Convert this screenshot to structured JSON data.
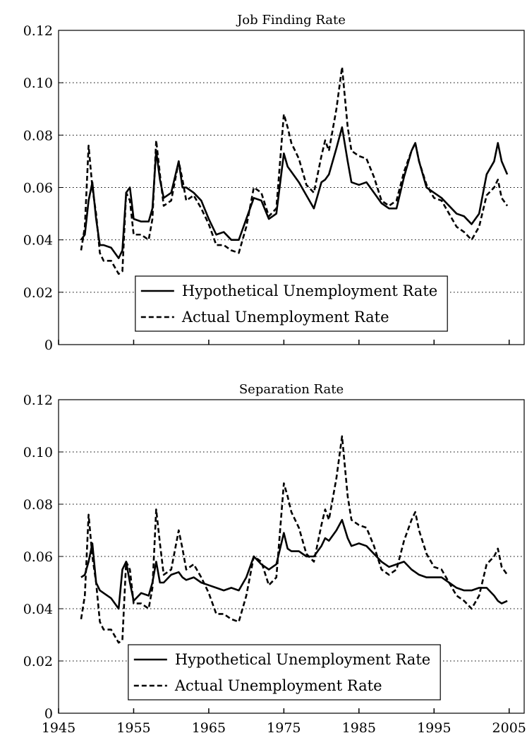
{
  "chart_data": [
    {
      "type": "line",
      "title": "Job Finding Rate",
      "x": [
        1948,
        1948.5,
        1949,
        1949.5,
        1950,
        1950.5,
        1951,
        1952,
        1953,
        1953.5,
        1954,
        1954.5,
        1955,
        1956,
        1957,
        1957.5,
        1958,
        1958.5,
        1959,
        1960,
        1961,
        1961.5,
        1962,
        1963,
        1964,
        1965,
        1966,
        1967,
        1968,
        1969,
        1970,
        1971,
        1972,
        1973,
        1974,
        1975,
        1975.5,
        1976,
        1977,
        1978,
        1979,
        1980,
        1980.5,
        1981,
        1982,
        1982.75,
        1983.5,
        1984,
        1985,
        1986,
        1987,
        1988,
        1989,
        1990,
        1991,
        1992,
        1992.5,
        1993,
        1994,
        1995,
        1996,
        1997,
        1998,
        1999,
        2000,
        2001,
        2002,
        2003,
        2003.5,
        2004,
        2004.75
      ],
      "series": [
        {
          "name": "Hypothetical Unemployment Rate",
          "color": "#000000",
          "style": "solid",
          "values": [
            0.04,
            0.042,
            0.055,
            0.062,
            0.048,
            0.038,
            0.038,
            0.037,
            0.033,
            0.036,
            0.058,
            0.06,
            0.048,
            0.047,
            0.047,
            0.052,
            0.074,
            0.063,
            0.056,
            0.058,
            0.07,
            0.06,
            0.06,
            0.058,
            0.055,
            0.048,
            0.042,
            0.043,
            0.04,
            0.04,
            0.048,
            0.056,
            0.055,
            0.048,
            0.05,
            0.073,
            0.068,
            0.066,
            0.062,
            0.057,
            0.052,
            0.062,
            0.063,
            0.065,
            0.075,
            0.083,
            0.07,
            0.062,
            0.061,
            0.062,
            0.058,
            0.054,
            0.052,
            0.052,
            0.064,
            0.074,
            0.077,
            0.07,
            0.06,
            0.058,
            0.056,
            0.053,
            0.05,
            0.049,
            0.046,
            0.05,
            0.065,
            0.07,
            0.077,
            0.07,
            0.065
          ]
        },
        {
          "name": "Actual Unemployment Rate",
          "color": "#000000",
          "style": "dashed",
          "values": [
            0.036,
            0.045,
            0.076,
            0.06,
            0.05,
            0.035,
            0.032,
            0.032,
            0.027,
            0.028,
            0.058,
            0.055,
            0.042,
            0.042,
            0.04,
            0.048,
            0.078,
            0.065,
            0.053,
            0.055,
            0.07,
            0.063,
            0.055,
            0.057,
            0.052,
            0.046,
            0.038,
            0.038,
            0.036,
            0.035,
            0.045,
            0.06,
            0.058,
            0.049,
            0.052,
            0.088,
            0.083,
            0.077,
            0.071,
            0.061,
            0.058,
            0.072,
            0.078,
            0.074,
            0.09,
            0.106,
            0.083,
            0.074,
            0.072,
            0.071,
            0.064,
            0.055,
            0.053,
            0.055,
            0.066,
            0.074,
            0.077,
            0.07,
            0.061,
            0.056,
            0.055,
            0.05,
            0.045,
            0.043,
            0.04,
            0.045,
            0.057,
            0.06,
            0.063,
            0.056,
            0.053
          ]
        }
      ],
      "xlim": [
        1945,
        2007
      ],
      "xticks": [
        1945,
        1955,
        1965,
        1975,
        1985,
        1995,
        2005
      ],
      "xtick_labels": false,
      "ylim": [
        0,
        0.12
      ],
      "yticks": [
        0,
        0.02,
        0.04,
        0.06,
        0.08,
        {
          "value": 0.1,
          "label": "0.10"
        },
        0.12
      ],
      "grid": true,
      "legend": "lower center"
    },
    {
      "type": "line",
      "title": "Separation Rate",
      "x": [
        1948,
        1948.5,
        1949,
        1949.5,
        1950,
        1950.5,
        1951,
        1952,
        1953,
        1953.5,
        1954,
        1954.5,
        1955,
        1956,
        1957,
        1957.5,
        1958,
        1958.5,
        1959,
        1960,
        1961,
        1961.5,
        1962,
        1963,
        1964,
        1965,
        1966,
        1967,
        1968,
        1969,
        1970,
        1971,
        1972,
        1973,
        1974,
        1975,
        1975.5,
        1976,
        1977,
        1978,
        1979,
        1980,
        1980.5,
        1981,
        1982,
        1982.75,
        1983.5,
        1984,
        1985,
        1986,
        1987,
        1988,
        1989,
        1990,
        1991,
        1992,
        1992.5,
        1993,
        1994,
        1995,
        1996,
        1997,
        1998,
        1999,
        2000,
        2001,
        2002,
        2003,
        2003.5,
        2004,
        2004.75
      ],
      "series": [
        {
          "name": "Hypothetical Unemployment Rate",
          "color": "#000000",
          "style": "solid",
          "values": [
            0.052,
            0.053,
            0.058,
            0.065,
            0.05,
            0.047,
            0.046,
            0.044,
            0.04,
            0.055,
            0.058,
            0.05,
            0.043,
            0.046,
            0.045,
            0.05,
            0.058,
            0.05,
            0.05,
            0.053,
            0.054,
            0.052,
            0.051,
            0.052,
            0.05,
            0.049,
            0.048,
            0.047,
            0.048,
            0.047,
            0.052,
            0.06,
            0.057,
            0.055,
            0.057,
            0.069,
            0.063,
            0.062,
            0.062,
            0.06,
            0.06,
            0.064,
            0.067,
            0.066,
            0.07,
            0.074,
            0.067,
            0.064,
            0.065,
            0.064,
            0.061,
            0.058,
            0.056,
            0.057,
            0.058,
            0.055,
            0.054,
            0.053,
            0.052,
            0.052,
            0.052,
            0.05,
            0.048,
            0.047,
            0.047,
            0.048,
            0.048,
            0.045,
            0.043,
            0.042,
            0.043
          ]
        },
        {
          "name": "Actual Unemployment Rate",
          "color": "#000000",
          "style": "dashed",
          "values": [
            0.036,
            0.045,
            0.076,
            0.06,
            0.05,
            0.035,
            0.032,
            0.032,
            0.027,
            0.028,
            0.058,
            0.055,
            0.042,
            0.042,
            0.04,
            0.048,
            0.078,
            0.065,
            0.053,
            0.055,
            0.07,
            0.063,
            0.055,
            0.057,
            0.052,
            0.046,
            0.038,
            0.038,
            0.036,
            0.035,
            0.045,
            0.06,
            0.058,
            0.049,
            0.052,
            0.088,
            0.083,
            0.077,
            0.071,
            0.061,
            0.058,
            0.072,
            0.078,
            0.074,
            0.09,
            0.106,
            0.083,
            0.074,
            0.072,
            0.071,
            0.064,
            0.055,
            0.053,
            0.055,
            0.066,
            0.074,
            0.077,
            0.07,
            0.061,
            0.056,
            0.055,
            0.05,
            0.045,
            0.043,
            0.04,
            0.045,
            0.057,
            0.06,
            0.063,
            0.056,
            0.053
          ]
        }
      ],
      "xlim": [
        1945,
        2007
      ],
      "xticks": [
        1945,
        1955,
        1965,
        1975,
        1985,
        1995,
        2005
      ],
      "xtick_labels": true,
      "ylim": [
        0,
        0.12
      ],
      "yticks": [
        0,
        0.02,
        0.04,
        0.06,
        0.08,
        {
          "value": 0.1,
          "label": "0.10"
        },
        0.12
      ],
      "grid": true,
      "legend": "lower center"
    }
  ]
}
